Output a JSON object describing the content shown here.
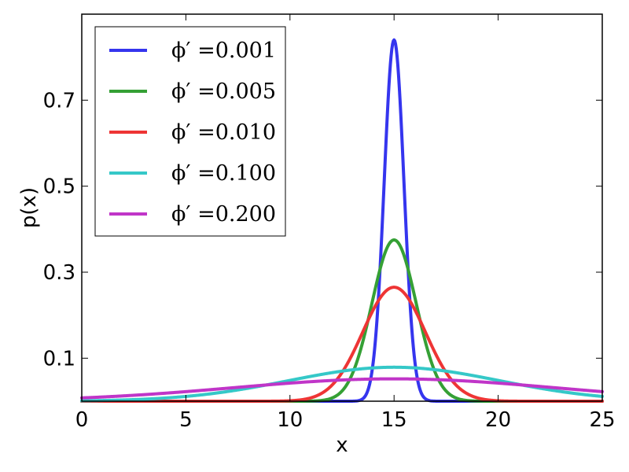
{
  "chart_data": {
    "type": "line",
    "title": "",
    "xlabel": "x",
    "ylabel": "p(x)",
    "xlim": [
      0,
      25
    ],
    "ylim": [
      0,
      0.9
    ],
    "xticks": [
      0,
      5,
      10,
      15,
      20,
      25
    ],
    "xtick_labels": [
      "0",
      "5",
      "10",
      "15",
      "20",
      "25"
    ],
    "yticks": [
      0.1,
      0.3,
      0.5,
      0.7
    ],
    "ytick_labels": [
      "0.1",
      "0.3",
      "0.5",
      "0.7"
    ],
    "grid": false,
    "legend_position": "top-left",
    "series": [
      {
        "name": "ϕ′ =0.001",
        "color": "#3535ee",
        "mean": 15,
        "peak": 0.84
      },
      {
        "name": "ϕ′ =0.005",
        "color": "#35a035",
        "mean": 15,
        "peak": 0.375
      },
      {
        "name": "ϕ′ =0.010",
        "color": "#ee3535",
        "mean": 15,
        "peak": 0.265
      },
      {
        "name": "ϕ′ =0.100",
        "color": "#35c8c8",
        "mean": 15,
        "peak": 0.079
      },
      {
        "name": "ϕ′ =0.200",
        "color": "#c035c8",
        "mean": 15,
        "peak": 0.052
      }
    ]
  }
}
